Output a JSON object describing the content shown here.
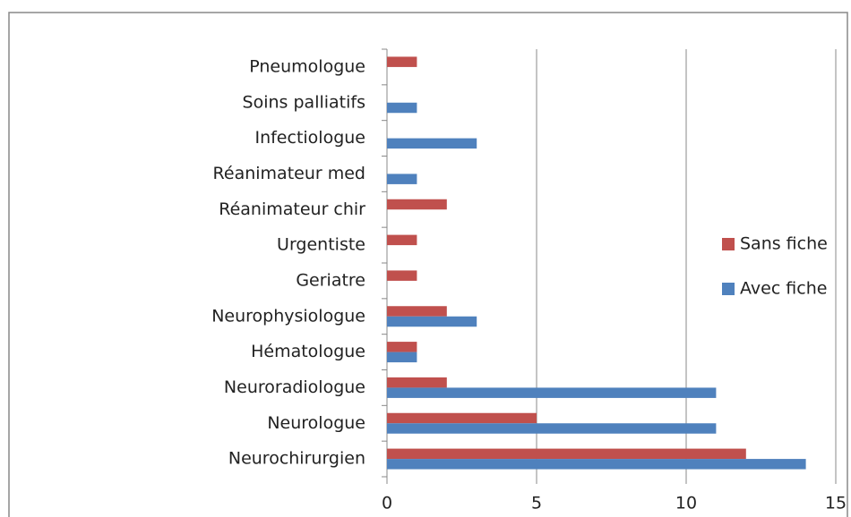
{
  "chart_data": {
    "type": "bar",
    "orientation": "horizontal",
    "categories": [
      "Neurochirurgien",
      "Neurologue",
      "Neuroradiologue",
      "Hématologue",
      "Neurophysiologue",
      "Geriatre",
      "Urgentiste",
      "Réanimateur chir",
      "Réanimateur med",
      "Infectiologue",
      "Soins palliatifs",
      "Pneumologue"
    ],
    "series": [
      {
        "name": "Sans fiche",
        "color": "#c0504d",
        "values": [
          12,
          5,
          2,
          1,
          2,
          1,
          1,
          2,
          0,
          0,
          0,
          1
        ]
      },
      {
        "name": "Avec fiche",
        "color": "#4f81bd",
        "values": [
          14,
          11,
          11,
          1,
          3,
          0,
          0,
          0,
          1,
          3,
          1,
          0
        ]
      }
    ],
    "xlim": [
      0,
      15
    ],
    "xticks": [
      0,
      5,
      10,
      15
    ],
    "grid": true,
    "legend": "right"
  }
}
